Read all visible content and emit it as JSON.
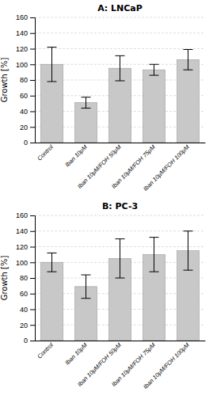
{
  "chart_data": [
    {
      "type": "bar",
      "title": "A: LNCaP",
      "categories": [
        "Control",
        "Iban 10μM",
        "Iban 10μM/FOH 50μM",
        "Iban 10μM/FOH 75μM",
        "Iban 10μM/FOH 100μM"
      ],
      "values": [
        100,
        51,
        95,
        93,
        106
      ],
      "errors": [
        22,
        7,
        16,
        7,
        13
      ],
      "ylabel": "Growth [%]",
      "ylim": [
        0,
        160
      ],
      "yticks": [
        0,
        20,
        40,
        60,
        80,
        100,
        120,
        140,
        160
      ],
      "color": "#c8c8c8",
      "grid": true
    },
    {
      "type": "bar",
      "title": "B: PC-3",
      "categories": [
        "Control",
        "Iban 10μM",
        "Iban 10μM/FOH 50μM",
        "Iban 10μM/FOH 75μM",
        "Iban 10μM/FOH 100μM"
      ],
      "values": [
        100,
        69,
        105,
        110,
        115
      ],
      "errors": [
        12,
        15,
        25,
        22,
        25
      ],
      "ylabel": "Growth [%]",
      "ylim": [
        0,
        160
      ],
      "yticks": [
        0,
        20,
        40,
        60,
        80,
        100,
        120,
        140,
        160
      ],
      "color": "#c8c8c8",
      "grid": true
    }
  ]
}
